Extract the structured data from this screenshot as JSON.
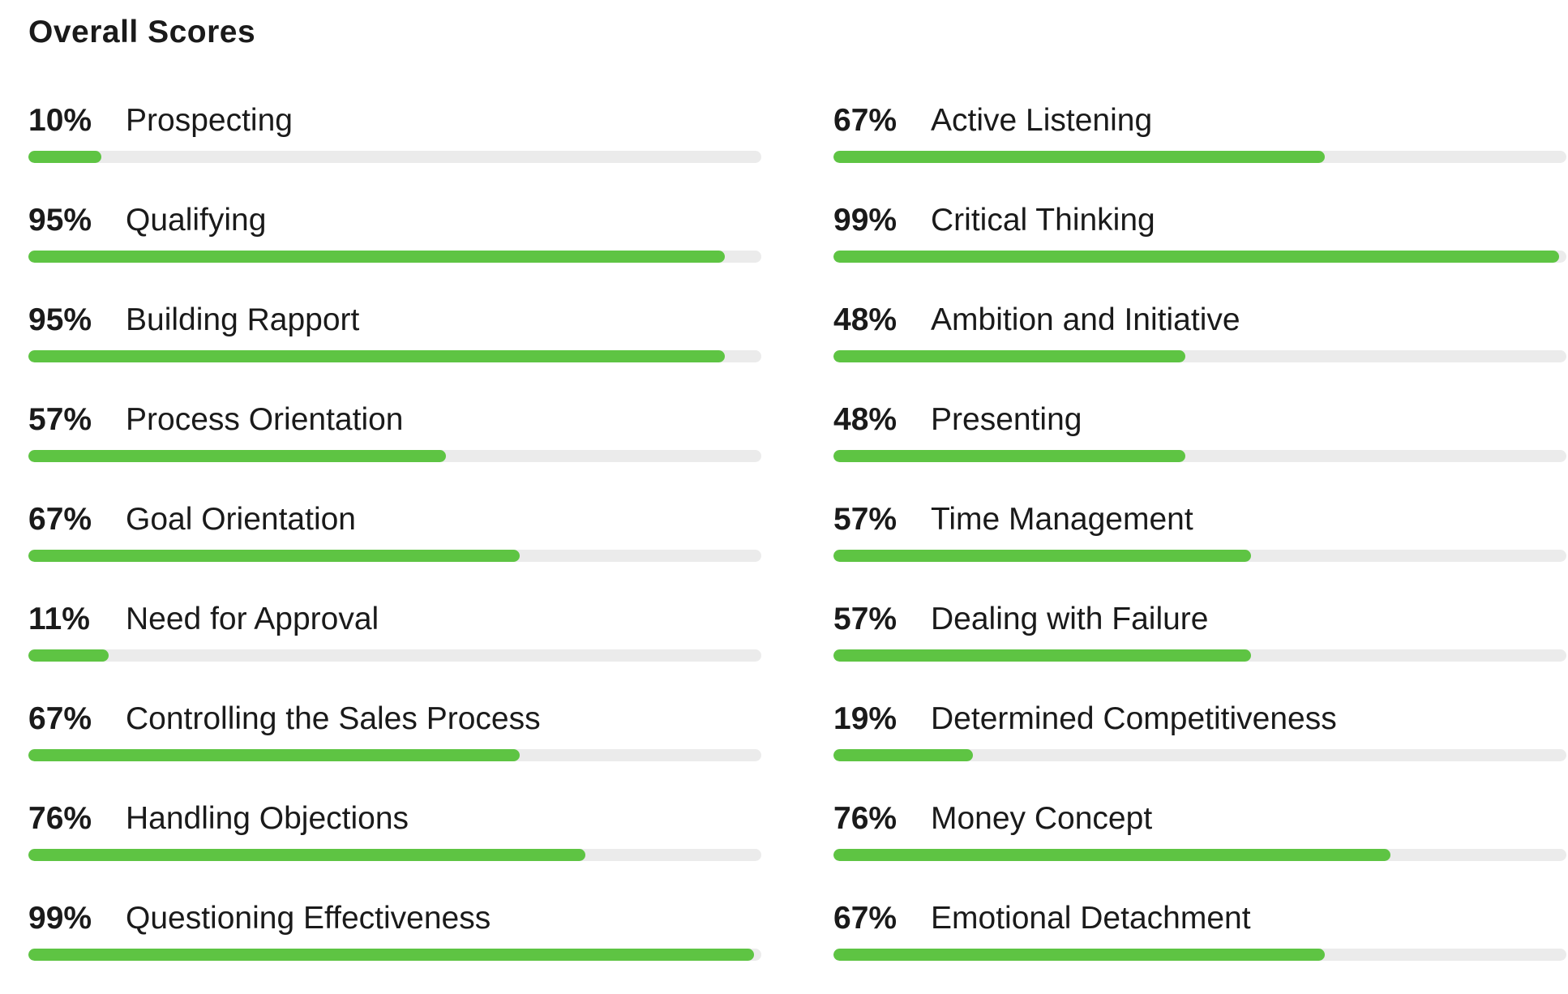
{
  "title": "Overall Scores",
  "colors": {
    "bar_fill": "#5ec443",
    "bar_track": "#ebebeb"
  },
  "chart_data": {
    "type": "bar",
    "orientation": "horizontal",
    "title": "Overall Scores",
    "xlim": [
      0,
      100
    ],
    "unit": "%",
    "grid": false,
    "columns": [
      {
        "items": [
          {
            "label": "Prospecting",
            "value": 10,
            "pct_text": "10%"
          },
          {
            "label": "Qualifying",
            "value": 95,
            "pct_text": "95%"
          },
          {
            "label": "Building Rapport",
            "value": 95,
            "pct_text": "95%"
          },
          {
            "label": "Process Orientation",
            "value": 57,
            "pct_text": "57%"
          },
          {
            "label": "Goal Orientation",
            "value": 67,
            "pct_text": "67%"
          },
          {
            "label": "Need for Approval",
            "value": 11,
            "pct_text": "11%"
          },
          {
            "label": "Controlling the Sales Process",
            "value": 67,
            "pct_text": "67%"
          },
          {
            "label": "Handling Objections",
            "value": 76,
            "pct_text": "76%"
          },
          {
            "label": "Questioning Effectiveness",
            "value": 99,
            "pct_text": "99%"
          }
        ]
      },
      {
        "items": [
          {
            "label": "Active Listening",
            "value": 67,
            "pct_text": "67%"
          },
          {
            "label": "Critical Thinking",
            "value": 99,
            "pct_text": "99%"
          },
          {
            "label": "Ambition and Initiative",
            "value": 48,
            "pct_text": "48%"
          },
          {
            "label": "Presenting",
            "value": 48,
            "pct_text": "48%"
          },
          {
            "label": "Time Management",
            "value": 57,
            "pct_text": "57%"
          },
          {
            "label": "Dealing with Failure",
            "value": 57,
            "pct_text": "57%"
          },
          {
            "label": "Determined Competitiveness",
            "value": 19,
            "pct_text": "19%"
          },
          {
            "label": "Money Concept",
            "value": 76,
            "pct_text": "76%"
          },
          {
            "label": "Emotional Detachment",
            "value": 67,
            "pct_text": "67%"
          }
        ]
      }
    ]
  }
}
